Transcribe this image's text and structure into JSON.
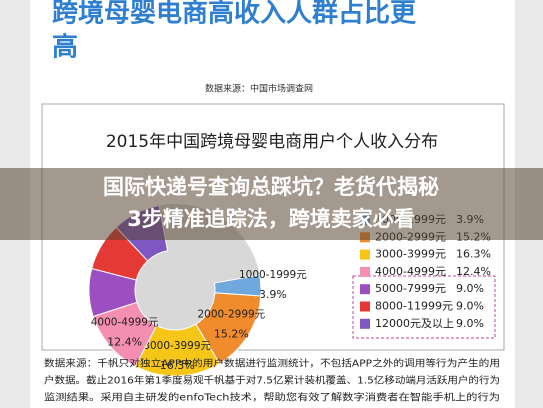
{
  "header": {
    "title_line1": "跨境母婴电商高收入人群占比更",
    "title_line2": "高",
    "source": "数据来源：中国市场调查网"
  },
  "chart_data": {
    "type": "pie",
    "title": "2015年中国跨境母婴电商用户个人收入分布",
    "categories": [
      "1000-1999元",
      "2000-2999元",
      "3000-3999元",
      "4000-4999元",
      "5000-7999元",
      "8000-11999元",
      "12000元及以上"
    ],
    "values": [
      3.9,
      15.2,
      16.3,
      12.4,
      9.0,
      9.0,
      9.0
    ],
    "value_labels": [
      "3.9%",
      "15.2%",
      "16.3%",
      "12.4%",
      "9.0%",
      "9.0%",
      "9.0%"
    ],
    "colors": [
      "#6fa8dc",
      "#f08c2e",
      "#f5c518",
      "#f48fb1",
      "#9c4fc0",
      "#e53935",
      "#7e57c2"
    ],
    "donut": true
  },
  "banner": {
    "line1": "国际快递号查询总踩坑？老货代揭秘",
    "line2": "3步精准追踪法，跨境卖家必看"
  },
  "footnote": [
    "数据来源：千帆只对独立APP中的用户数据进行监测统计，不包括APP之外的调用等行为产生的用",
    "户数据。截止2016年第1季度易观千帆基于对7.5亿累计装机覆盖、1.5亿移动端月活跃用户的行为",
    "监测结果。采用自主研发的enfoTech技术，帮助您有效了解数字消费者在智能手机上的行为"
  ]
}
